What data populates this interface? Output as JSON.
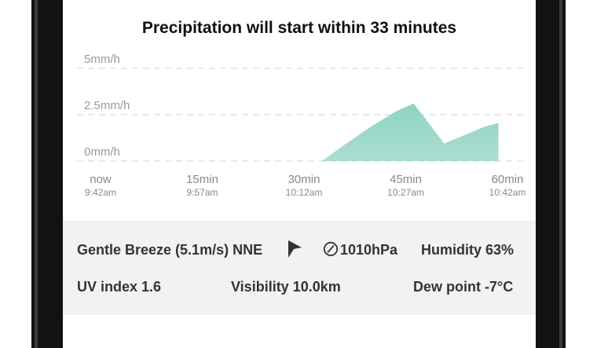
{
  "headline": "Precipitation will start within 33 minutes",
  "chart_data": {
    "type": "area",
    "title": "",
    "y_ticks": [
      "5mm/h",
      "2.5mm/h",
      "0mm/h"
    ],
    "ylim": [
      0,
      5
    ],
    "xlim": [
      0,
      60
    ],
    "x_ticks": [
      {
        "label": "now",
        "time": "9:42am",
        "minute": 0
      },
      {
        "label": "15min",
        "time": "9:57am",
        "minute": 15
      },
      {
        "label": "30min",
        "time": "10:12am",
        "minute": 30
      },
      {
        "label": "45min",
        "time": "10:27am",
        "minute": 45
      },
      {
        "label": "60min",
        "time": "10:42am",
        "minute": 60
      }
    ],
    "grid": true,
    "series": [
      {
        "color": "#8fd3c2",
        "points": [
          [
            0,
            0
          ],
          [
            33,
            0
          ],
          [
            36,
            0.8
          ],
          [
            40,
            1.8
          ],
          [
            44,
            2.7
          ],
          [
            46.5,
            3.1
          ],
          [
            48,
            2.4
          ],
          [
            51,
            0.95
          ],
          [
            54,
            1.4
          ],
          [
            57,
            1.85
          ],
          [
            59,
            2.05
          ]
        ]
      }
    ]
  },
  "details": {
    "wind": "Gentle Breeze (5.1m/s) NNE",
    "pressure": "1010hPa",
    "humidity": "Humidity 63%",
    "uv": "UV index 1.6",
    "visibility": "Visibility 10.0km",
    "dew_point": "Dew point -7°C"
  },
  "icons": {
    "wind_direction": "navigation-arrow-icon",
    "pressure": "gauge-icon"
  },
  "colors": {
    "area": "#8fd3c2",
    "panel": "#f2f2f4"
  }
}
